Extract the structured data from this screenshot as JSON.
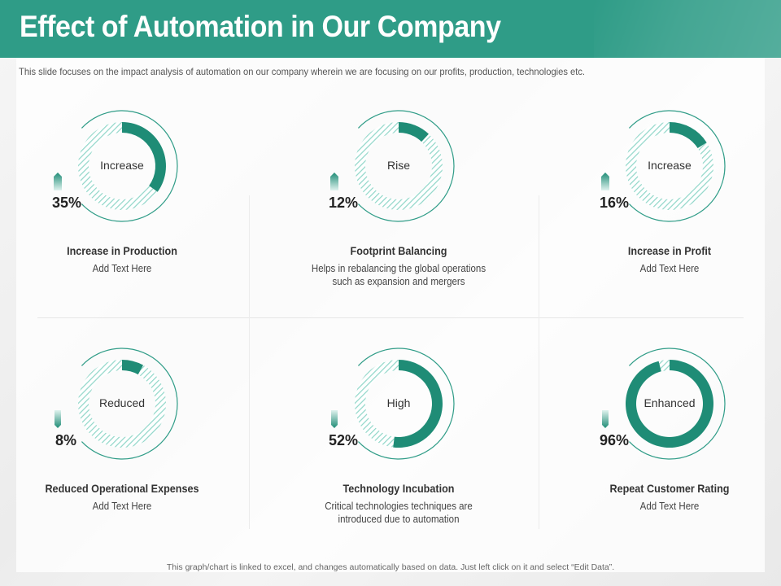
{
  "header": {
    "title": "Effect of Automation in Our Company",
    "subtitle": "This slide focuses on the impact analysis of automation on our company wherein we are focusing on our profits, production, technologies etc."
  },
  "colors": {
    "header_bg": "#2f9c87",
    "accent": "#1f8c76",
    "hatch": "#8fd6c8",
    "ring": "#2f9c87"
  },
  "footer": {
    "note": "This graph/chart is linked to excel, and changes automatically based on data. Just left click on it and select “Edit Data”."
  },
  "chart_data": [
    {
      "type": "pie",
      "variant": "donut",
      "value": 35,
      "percent_label": "35%",
      "center_label": "Increase",
      "title": "Increase in Production",
      "description": [
        "Add Text Here"
      ]
    },
    {
      "type": "pie",
      "variant": "donut",
      "value": 12,
      "percent_label": "12%",
      "center_label": "Rise",
      "title": "Footprint Balancing",
      "description": [
        "Helps in rebalancing the global operations",
        "such as expansion and mergers"
      ]
    },
    {
      "type": "pie",
      "variant": "donut",
      "value": 16,
      "percent_label": "16%",
      "center_label": "Increase",
      "title": "Increase in Profit",
      "description": [
        "Add Text Here"
      ]
    },
    {
      "type": "pie",
      "variant": "donut",
      "value": 8,
      "percent_label": "8%",
      "center_label": "Reduced",
      "title": "Reduced Operational Expenses",
      "description": [
        "Add Text Here"
      ]
    },
    {
      "type": "pie",
      "variant": "donut",
      "value": 52,
      "percent_label": "52%",
      "center_label": "High",
      "title": "Technology Incubation",
      "description": [
        "Critical technologies techniques are",
        "introduced due to automation"
      ]
    },
    {
      "type": "pie",
      "variant": "donut",
      "value": 96,
      "percent_label": "96%",
      "center_label": "Enhanced",
      "title": "Repeat Customer Rating",
      "description": [
        "Add Text Here"
      ]
    }
  ]
}
